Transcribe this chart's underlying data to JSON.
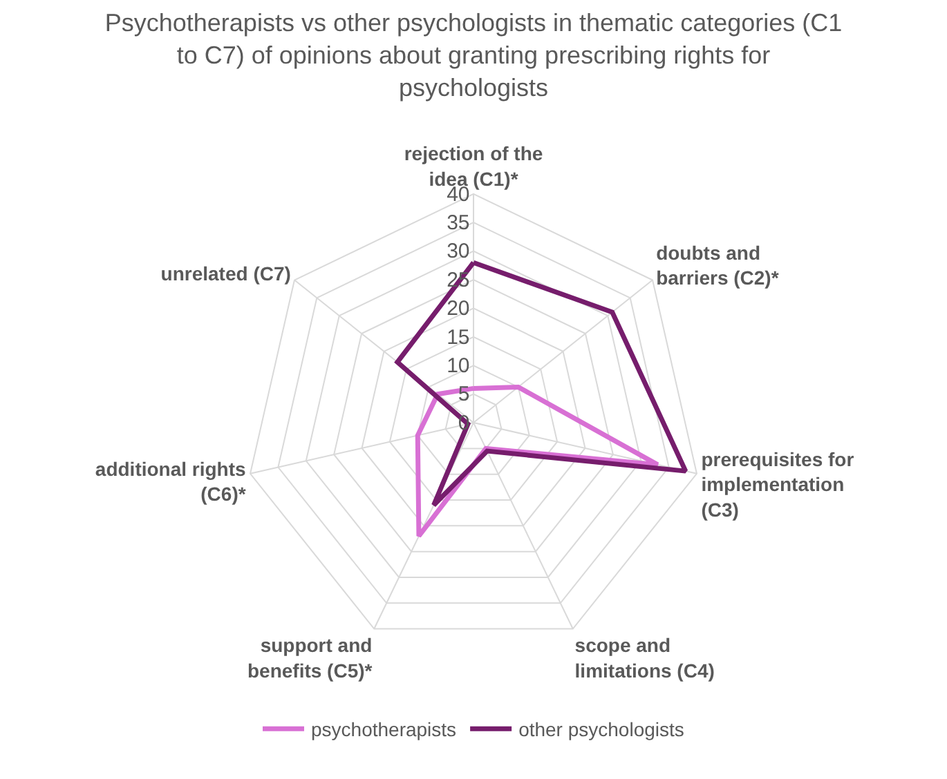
{
  "chart_data": {
    "type": "radar",
    "title": "Psychotherapists vs other psychologists in thematic categories (C1 to C7) of opinions about granting prescribing rights for psychologists",
    "categories": [
      "rejection of the idea (C1)*",
      "doubts and barriers (C2)*",
      "prerequisites for implementation (C3)",
      "scope and limitations (C4)",
      "support and benefits (C5)*",
      "additional rights (C6)*",
      "unrelated (C7)"
    ],
    "series": [
      {
        "name": "psychotherapists",
        "color": "#d870d4",
        "values": [
          6,
          10,
          33,
          5,
          22,
          10,
          8
        ]
      },
      {
        "name": "other psychologists",
        "color": "#761d6c",
        "values": [
          28,
          31,
          38,
          5.5,
          16,
          1,
          17
        ]
      }
    ],
    "ylim": [
      0,
      40
    ],
    "yticks": [
      0,
      5,
      10,
      15,
      20,
      25,
      30,
      35,
      40
    ],
    "grid": true,
    "legend": "bottom",
    "marker": "none",
    "line_style": "solid"
  }
}
